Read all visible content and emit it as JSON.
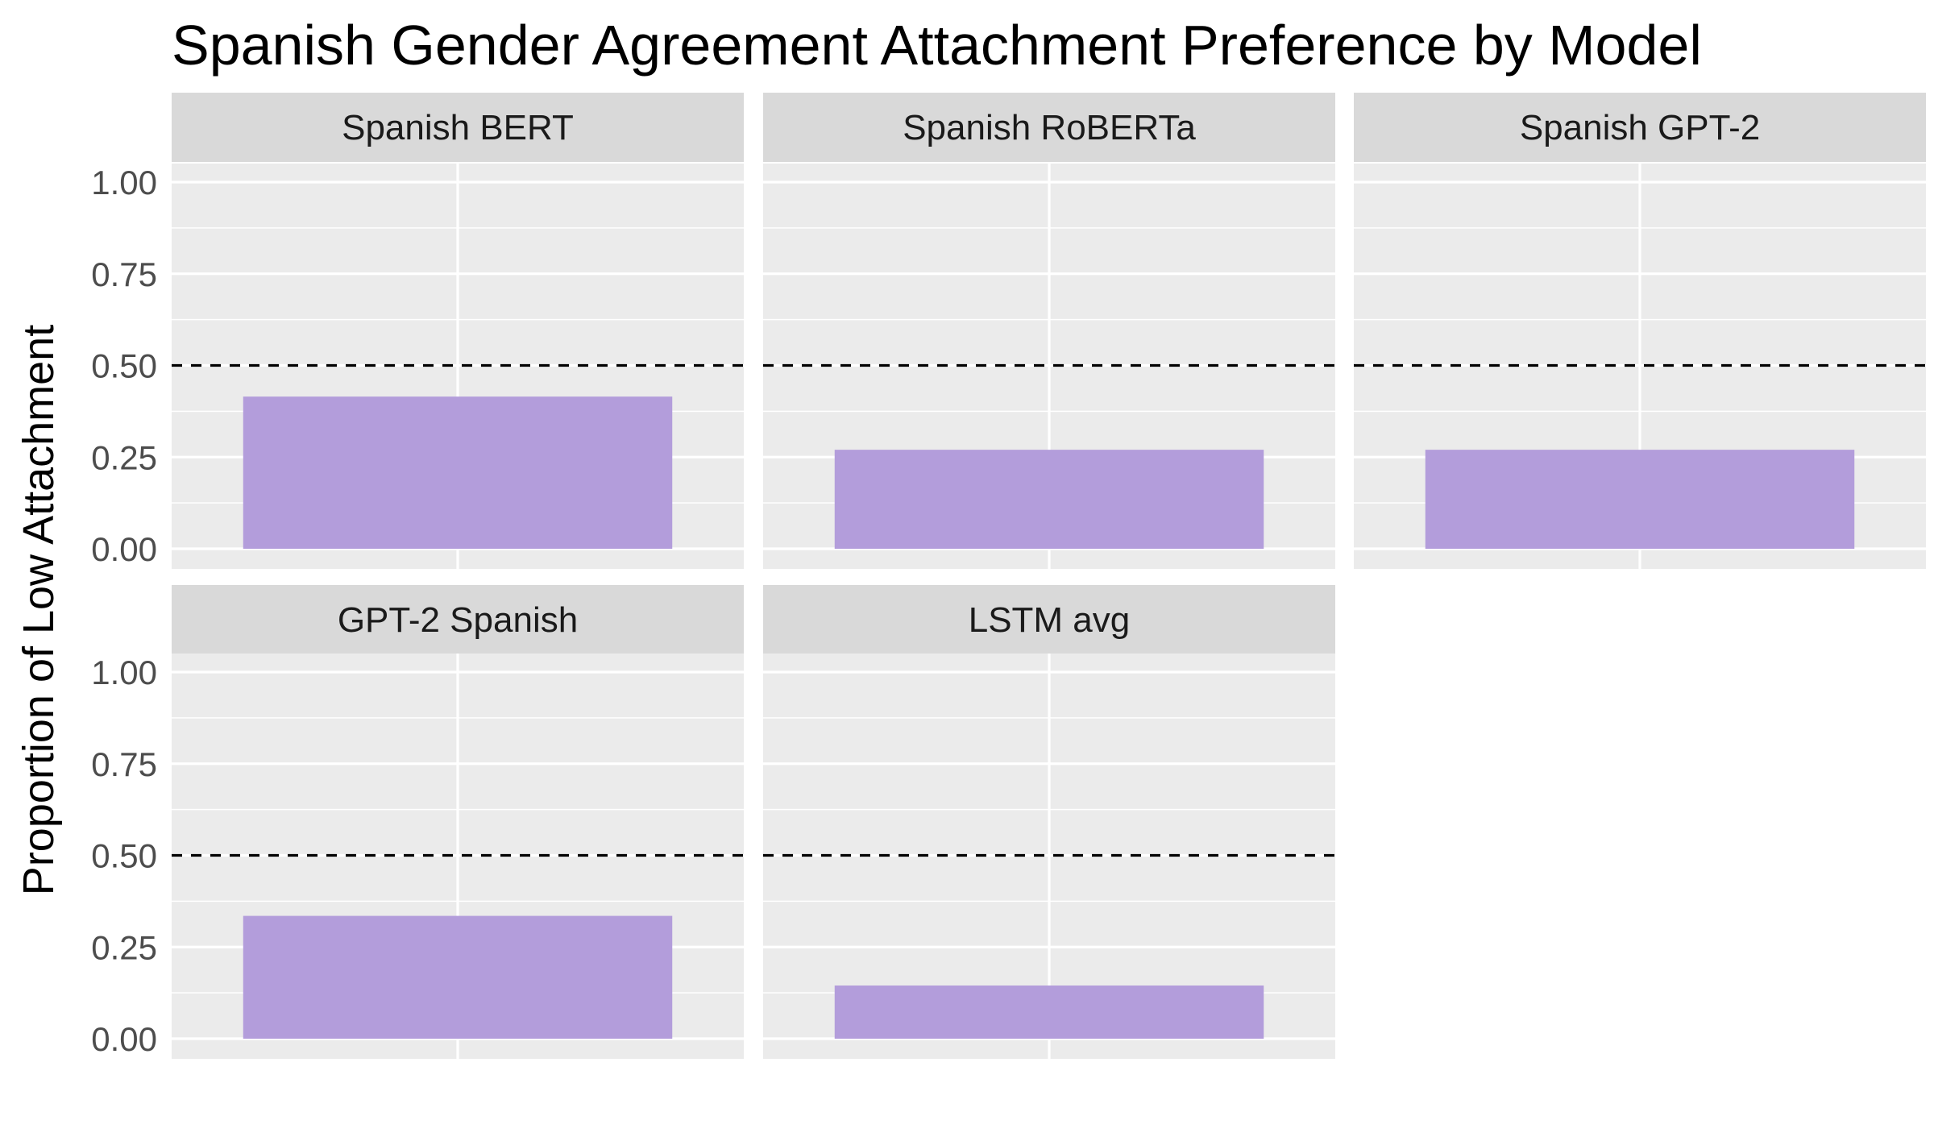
{
  "chart_data": {
    "type": "bar",
    "title": "Spanish Gender Agreement Attachment Preference by Model",
    "ylabel": "Proportion of Low Attachment",
    "xlabel": "",
    "ylim": [
      0,
      1.05
    ],
    "yticks": [
      "0.00",
      "0.25",
      "0.50",
      "0.75",
      "1.00"
    ],
    "ytick_values": [
      0,
      0.25,
      0.5,
      0.75,
      1.0
    ],
    "reference_line": 0.5,
    "grid": true,
    "bar_color": "#b39ddb",
    "panel_background": "#ebebeb",
    "strip_background": "#d9d9d9",
    "panels": [
      {
        "label": "Spanish BERT",
        "value": 0.415
      },
      {
        "label": "Spanish RoBERTa",
        "value": 0.27
      },
      {
        "label": "Spanish GPT-2",
        "value": 0.27
      },
      {
        "label": "GPT-2 Spanish",
        "value": 0.335
      },
      {
        "label": "LSTM avg",
        "value": 0.145
      }
    ]
  }
}
